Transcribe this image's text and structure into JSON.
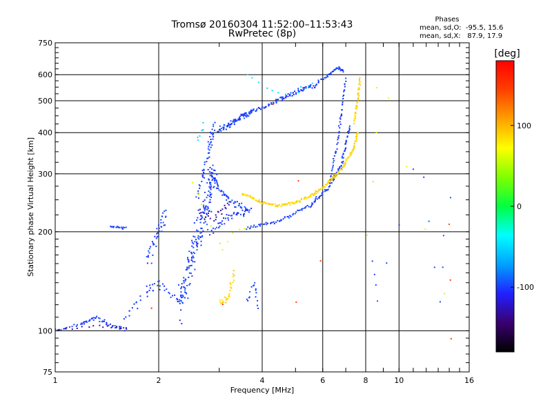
{
  "chart_data": {
    "type": "scatter",
    "title": "Tromsø 20160304 11:52:00–11:53:43",
    "subtitle": "RwPretec (8p)",
    "xlabel": "Frequency [MHz]",
    "ylabel": "Stationary phase Virtual Height [km]",
    "x_scale": "log",
    "y_scale": "log",
    "xlim": [
      1,
      16
    ],
    "ylim": [
      75,
      750
    ],
    "x_ticks": [
      {
        "value": 1,
        "label": "1"
      },
      {
        "value": 2,
        "label": "2"
      },
      {
        "value": 4,
        "label": "4"
      },
      {
        "value": 6,
        "label": "6"
      },
      {
        "value": 8,
        "label": "8"
      },
      {
        "value": 10,
        "label": "10"
      },
      {
        "value": 16,
        "label": "16"
      }
    ],
    "y_ticks": [
      {
        "value": 75,
        "label": "75"
      },
      {
        "value": 100,
        "label": "100"
      },
      {
        "value": 200,
        "label": "200"
      },
      {
        "value": 300,
        "label": "300"
      },
      {
        "value": 400,
        "label": "400"
      },
      {
        "value": 500,
        "label": "500"
      },
      {
        "value": 600,
        "label": "600"
      },
      {
        "value": 750,
        "label": "750"
      }
    ],
    "grid": true,
    "stats": {
      "heading": "Phases",
      "o_line": "mean, sd,O:  -95.5, 15.6",
      "x_line": "mean, sd,X:   87.9, 17.9"
    },
    "colorbar": {
      "label": "[deg]",
      "range": [
        -180,
        180
      ],
      "ticks": [
        {
          "value": 100,
          "label": "100"
        },
        {
          "value": 0,
          "label": "0"
        },
        {
          "value": -100,
          "label": "-100"
        }
      ],
      "stops": [
        "#000000",
        "#3a0070",
        "#2020ff",
        "#00a0ff",
        "#00ffff",
        "#00ff40",
        "#7fff00",
        "#ffff00",
        "#ffa000",
        "#ff4000",
        "#ff0000"
      ]
    },
    "series": [
      {
        "phase_deg": -100,
        "segments": [
          {
            "x": [
              1.0,
              1.2,
              1.3,
              1.45,
              1.6
            ],
            "y": [
              100,
              105,
              110,
              104,
              101
            ],
            "n": 60,
            "jx": 0.015,
            "jy": 0.02
          },
          {
            "x": [
              1.45,
              1.6
            ],
            "y": [
              207,
              205
            ],
            "n": 18,
            "jx": 0.01,
            "jy": 0.01
          },
          {
            "x": [
              1.6,
              1.85,
              2.0,
              2.3
            ],
            "y": [
              110,
              130,
              140,
              122
            ],
            "n": 40,
            "jx": 0.03,
            "jy": 0.05
          },
          {
            "x": [
              1.85,
              2.0,
              2.1
            ],
            "y": [
              160,
              200,
              225
            ],
            "n": 40,
            "jx": 0.03,
            "jy": 0.08
          },
          {
            "x": [
              2.3,
              2.5,
              2.7,
              2.9
            ],
            "y": [
              120,
              160,
              220,
              300
            ],
            "n": 180,
            "jx": 0.03,
            "jy": 0.18
          },
          {
            "x": [
              2.6,
              2.8,
              2.9
            ],
            "y": [
              260,
              350,
              420
            ],
            "n": 50,
            "jx": 0.02,
            "jy": 0.06
          },
          {
            "x": [
              2.8,
              3.0,
              3.3,
              3.7
            ],
            "y": [
              310,
              270,
              245,
              232
            ],
            "n": 70,
            "jx": 0.02,
            "jy": 0.03
          },
          {
            "x": [
              2.8,
              3.2,
              3.6
            ],
            "y": [
              200,
              225,
              230
            ],
            "n": 40,
            "jx": 0.03,
            "jy": 0.04
          },
          {
            "x": [
              3.6,
              4.5,
              5.5,
              6.2,
              6.8,
              7.2
            ],
            "y": [
              205,
              215,
              240,
              270,
              320,
              420
            ],
            "n": 130,
            "jx": 0.01,
            "jy": 0.02
          },
          {
            "x": [
              3.0,
              3.4,
              3.8
            ],
            "y": [
              405,
              440,
              470
            ],
            "n": 90,
            "jx": 0.025,
            "jy": 0.025
          },
          {
            "x": [
              3.9,
              4.5,
              5.1,
              5.8
            ],
            "y": [
              470,
              505,
              535,
              560
            ],
            "n": 80,
            "jx": 0.02,
            "jy": 0.02
          },
          {
            "x": [
              5.8,
              6.3,
              6.6,
              6.9
            ],
            "y": [
              570,
              600,
              630,
              615
            ],
            "n": 40,
            "jx": 0.01,
            "jy": 0.015
          },
          {
            "x": [
              6.3,
              6.6,
              6.8,
              7.0
            ],
            "y": [
              290,
              360,
              460,
              580
            ],
            "n": 50,
            "jx": 0.005,
            "jy": 0.03
          },
          {
            "x": [
              3.6,
              3.8,
              3.9
            ],
            "y": [
              120,
              140,
              118
            ],
            "n": 16,
            "jx": 0.015,
            "jy": 0.05
          }
        ]
      },
      {
        "phase_deg": 88,
        "segments": [
          {
            "x": [
              3.5,
              3.9,
              4.4,
              5.0,
              5.6,
              6.2,
              6.8,
              7.3,
              7.6
            ],
            "y": [
              260,
              248,
              240,
              245,
              258,
              280,
              310,
              350,
              400
            ],
            "n": 200,
            "jx": 0.01,
            "jy": 0.015
          },
          {
            "x": [
              7.4,
              7.6,
              7.7
            ],
            "y": [
              430,
              500,
              580
            ],
            "n": 40,
            "jx": 0.01,
            "jy": 0.03
          },
          {
            "x": [
              3.0,
              3.2,
              3.3
            ],
            "y": [
              122,
              126,
              150
            ],
            "n": 30,
            "jx": 0.02,
            "jy": 0.03
          }
        ]
      },
      {
        "phase_deg": -130,
        "segments": [
          {
            "x": [
              1.0,
              1.3,
              1.6
            ],
            "y": [
              100,
              104,
              102
            ],
            "n": 15,
            "jx": 0.02,
            "jy": 0.015
          },
          {
            "x": [
              2.6,
              2.9,
              3.2
            ],
            "y": [
              230,
              220,
              245
            ],
            "n": 25,
            "jx": 0.03,
            "jy": 0.04
          }
        ]
      },
      {
        "phase_deg": -50,
        "segments": [
          {
            "x": [
              3.6,
              4.6,
              5.6
            ],
            "y": [
              600,
              515,
              560
            ],
            "n": 12,
            "jx": 0.02,
            "jy": 0.03
          },
          {
            "x": [
              2.6,
              2.7
            ],
            "y": [
              380,
              420
            ],
            "n": 6,
            "jx": 0.02,
            "jy": 0.03
          }
        ]
      },
      {
        "phase_deg": 150,
        "segments": [
          {
            "x": [
              4.3,
              6.4,
              1.9
            ],
            "y": [
              490,
              125,
              118
            ],
            "n": 6,
            "jx": 0.02,
            "jy": 0.02
          },
          {
            "x": [
              14,
              14.2
            ],
            "y": [
              210,
              95
            ],
            "n": 3,
            "jx": 0.005,
            "jy": 0.02
          }
        ]
      },
      {
        "phase_deg": 60,
        "segments": [
          {
            "x": [
              2.5,
              3.0,
              3.7
            ],
            "y": [
              290,
              180,
              210
            ],
            "n": 12,
            "jx": 0.03,
            "jy": 0.05
          },
          {
            "x": [
              8.2,
              8.8,
              13.5
            ],
            "y": [
              200,
              650,
              130
            ],
            "n": 8,
            "jx": 0.02,
            "jy": 0.05
          }
        ]
      },
      {
        "phase_deg": -95,
        "segments": [
          {
            "x": [
              8.4,
              8.6,
              11.5,
              13,
              14
            ],
            "y": [
              165,
              125,
              350,
              120,
              250
            ],
            "n": 14,
            "jx": 0.02,
            "jy": 0.08
          }
        ]
      }
    ]
  }
}
